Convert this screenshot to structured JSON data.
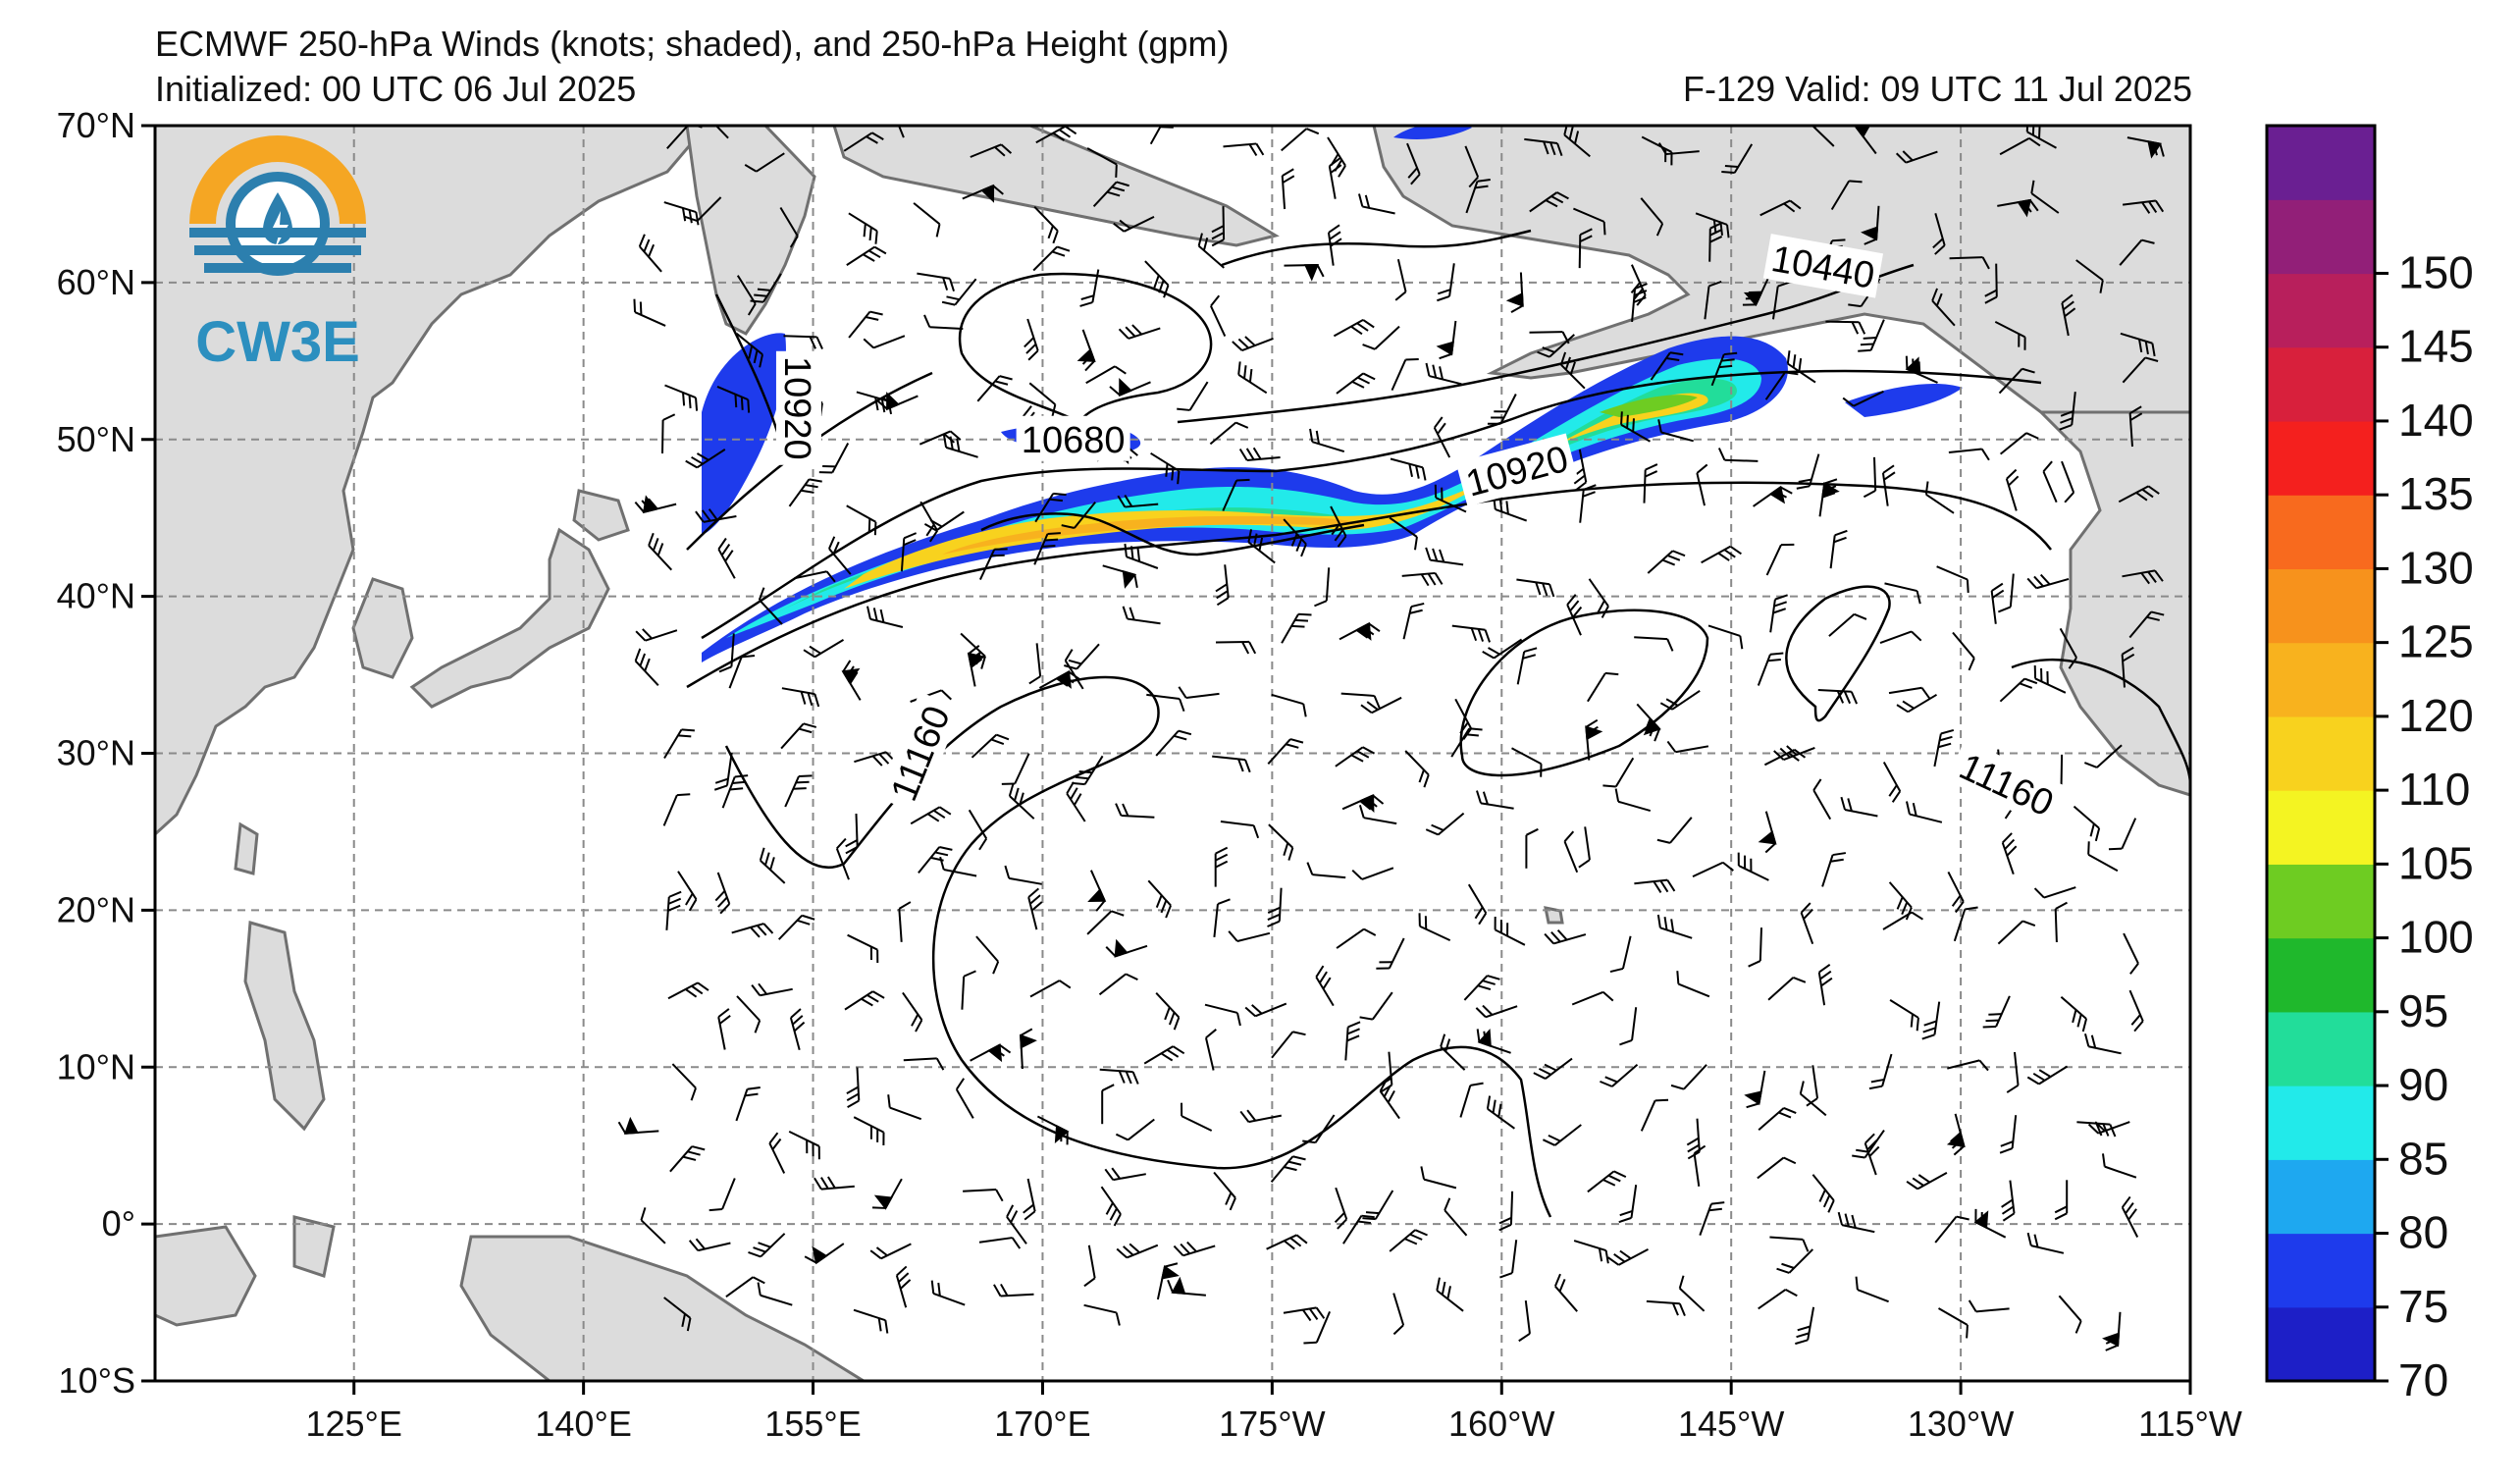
{
  "header": {
    "title": "ECMWF 250-hPa Winds (knots; shaded), and 250-hPa Height (gpm)",
    "initialized": "Initialized: 00 UTC 06 Jul 2025",
    "valid": "F-129  Valid: 09 UTC 11 Jul 2025"
  },
  "logo": {
    "text": "CW3E"
  },
  "axes": {
    "lat_labels": [
      "70°N",
      "60°N",
      "50°N",
      "40°N",
      "30°N",
      "20°N",
      "10°N",
      "0°",
      "10°S"
    ],
    "lon_labels": [
      "125°E",
      "140°E",
      "155°E",
      "170°E",
      "175°W",
      "160°W",
      "145°W",
      "130°W",
      "115°W"
    ],
    "lon_range": [
      112,
      245
    ],
    "lat_range": [
      -10,
      70
    ]
  },
  "contours": {
    "labels": [
      {
        "text": "10920",
        "lon": 154,
        "lat": 52,
        "rotate": 90
      },
      {
        "text": "10680",
        "lon": 172,
        "lat": 50,
        "rotate": 0
      },
      {
        "text": "10920",
        "lon": 201,
        "lat": 48,
        "rotate": -15
      },
      {
        "text": "10440",
        "lon": 221,
        "lat": 61,
        "rotate": 10
      },
      {
        "text": "11160",
        "lon": 162,
        "lat": 30,
        "rotate": -68
      },
      {
        "text": "11160",
        "lon": 233,
        "lat": 28,
        "rotate": 25
      }
    ]
  },
  "colorbar": {
    "ticks": [
      "70",
      "75",
      "80",
      "85",
      "90",
      "95",
      "100",
      "105",
      "110",
      "120",
      "125",
      "130",
      "135",
      "140",
      "145",
      "150"
    ],
    "colors": [
      "#1d1fc7",
      "#1e3bec",
      "#1ea8f0",
      "#22eaea",
      "#22dd9a",
      "#1fb82c",
      "#6ecc22",
      "#f4f422",
      "#f8d21e",
      "#f8b21e",
      "#f7921c",
      "#f86a1e",
      "#f4201e",
      "#d8203c",
      "#b81f5c",
      "#921f78",
      "#6a1f92"
    ]
  },
  "map_colors": {
    "land": "#dcdcdc",
    "coast": "#707070",
    "grid": "#8a8a8a"
  }
}
